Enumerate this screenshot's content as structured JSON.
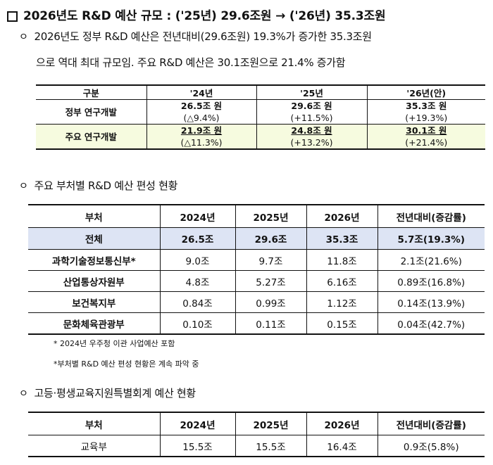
{
  "title": "2026년도 R&D 예산 규모 : ('25년) 29.6조원 → ('26년) 35.3조원",
  "bullet_marker": "ㅇ",
  "summary": {
    "line1": "2026년도 정부 R&D 예산은 전년대비(29.6조원) 19.3%가 증가한 35.3조원",
    "line2": "으로 역대 최대 규모임. 주요 R&D 예산은 30.1조원으로 21.4% 증가함"
  },
  "table1": {
    "headers": [
      "구분",
      "'24년",
      "'25년",
      "'26년(안)"
    ],
    "rows": [
      {
        "label": "정부 연구개발",
        "cells": [
          {
            "value": "26.5조 원",
            "pct": "(△9.4%)"
          },
          {
            "value": "29.6조 원",
            "pct": "(+11.5%)"
          },
          {
            "value": "35.3조 원",
            "pct": "(+19.3%)"
          }
        ]
      },
      {
        "label": "주요 연구개발",
        "cells": [
          {
            "value": "21.9조 원",
            "pct": "(△11.3%)"
          },
          {
            "value": "24.8조 원",
            "pct": "(+13.2%)"
          },
          {
            "value": "30.1조 원",
            "pct": "(+21.4%)"
          }
        ]
      }
    ]
  },
  "section2": {
    "heading": "주요 부처별 R&D 예산 편성 현황",
    "headers": [
      "부처",
      "2024년",
      "2025년",
      "2026년",
      "전년대비(증감률)"
    ],
    "rows": [
      [
        "전체",
        "26.5조",
        "29.6조",
        "35.3조",
        "5.7조(19.3%)"
      ],
      [
        "과학기술정보통신부*",
        "9.0조",
        "9.7조",
        "11.8조",
        "2.1조(21.6%)"
      ],
      [
        "산업통상자원부",
        "4.8조",
        "5.27조",
        "6.16조",
        "0.89조(16.8%)"
      ],
      [
        "보건복지부",
        "0.84조",
        "0.99조",
        "1.12조",
        "0.14조(13.9%)"
      ],
      [
        "문화체육관광부",
        "0.10조",
        "0.11조",
        "0.15조",
        "0.04조(42.7%)"
      ]
    ],
    "note1": "* 2024년 우주청 이관 사업예산 포함",
    "note2": "*부처별 R&D 예산 편성 현황은 계속 파악 중"
  },
  "section3": {
    "heading": "고등·평생교육지원특별회계 예산 현황",
    "headers": [
      "부처",
      "2024년",
      "2025년",
      "2026년",
      "전년대비(증감률)"
    ],
    "rows": [
      [
        "교육부",
        "15.5조",
        "15.5조",
        "16.4조",
        "0.9조(5.8%)"
      ]
    ]
  }
}
